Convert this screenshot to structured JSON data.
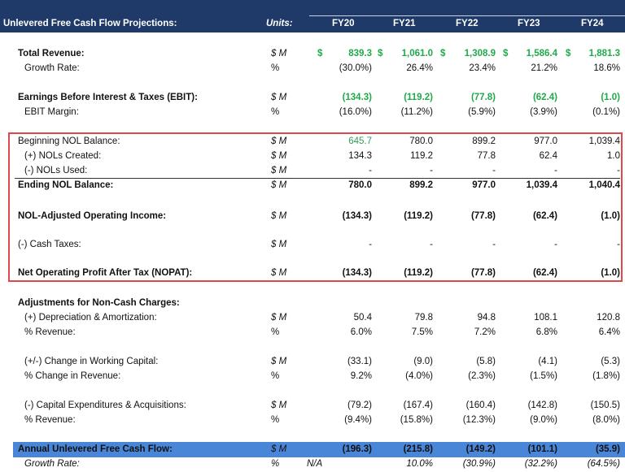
{
  "header": {
    "title": "Unlevered Free Cash Flow Projections:",
    "units_label": "Units:",
    "years": [
      "FY20",
      "FY21",
      "FY22",
      "FY23",
      "FY24"
    ]
  },
  "colors": {
    "header_bg": "#1f3a68",
    "positive_green": "#1faa4a",
    "highlight_box": "#e0474c",
    "total_bar": "#4a86d8"
  },
  "currency_symbol": "$",
  "rows": [
    {
      "label": "Total Revenue:",
      "units": "$ M",
      "values": [
        "839.3",
        "1,061.0",
        "1,308.9",
        "1,586.4",
        "1,881.3"
      ]
    },
    {
      "label": "Growth Rate:",
      "units": "%",
      "values": [
        "(30.0%)",
        "26.4%",
        "23.4%",
        "21.2%",
        "18.6%"
      ]
    },
    {
      "label": "Earnings Before Interest & Taxes (EBIT):",
      "units": "$ M",
      "values": [
        "(134.3)",
        "(119.2)",
        "(77.8)",
        "(62.4)",
        "(1.0)"
      ]
    },
    {
      "label": "EBIT Margin:",
      "units": "%",
      "values": [
        "(16.0%)",
        "(11.2%)",
        "(5.9%)",
        "(3.9%)",
        "(0.1%)"
      ]
    },
    {
      "label": "Beginning NOL Balance:",
      "units": "$ M",
      "values": [
        "645.7",
        "780.0",
        "899.2",
        "977.0",
        "1,039.4"
      ]
    },
    {
      "label": "(+) NOLs Created:",
      "units": "$ M",
      "values": [
        "134.3",
        "119.2",
        "77.8",
        "62.4",
        "1.0"
      ]
    },
    {
      "label": "(-) NOLs Used:",
      "units": "$ M",
      "values": [
        "-",
        "-",
        "-",
        "-",
        "-"
      ]
    },
    {
      "label": "Ending NOL Balance:",
      "units": "$ M",
      "values": [
        "780.0",
        "899.2",
        "977.0",
        "1,039.4",
        "1,040.4"
      ]
    },
    {
      "label": "NOL-Adjusted Operating Income:",
      "units": "$ M",
      "values": [
        "(134.3)",
        "(119.2)",
        "(77.8)",
        "(62.4)",
        "(1.0)"
      ]
    },
    {
      "label": "(-) Cash Taxes:",
      "units": "$ M",
      "values": [
        "-",
        "-",
        "-",
        "-",
        "-"
      ]
    },
    {
      "label": "Net Operating Profit After Tax (NOPAT):",
      "units": "$ M",
      "values": [
        "(134.3)",
        "(119.2)",
        "(77.8)",
        "(62.4)",
        "(1.0)"
      ]
    },
    {
      "label": "Adjustments for Non-Cash Charges:",
      "units": "",
      "values": []
    },
    {
      "label": "(+) Depreciation & Amortization:",
      "units": "$ M",
      "values": [
        "50.4",
        "79.8",
        "94.8",
        "108.1",
        "120.8"
      ]
    },
    {
      "label": "% Revenue:",
      "units": "%",
      "values": [
        "6.0%",
        "7.5%",
        "7.2%",
        "6.8%",
        "6.4%"
      ]
    },
    {
      "label": "(+/-) Change in Working Capital:",
      "units": "$ M",
      "values": [
        "(33.1)",
        "(9.0)",
        "(5.8)",
        "(4.1)",
        "(5.3)"
      ]
    },
    {
      "label": "% Change in Revenue:",
      "units": "%",
      "values": [
        "9.2%",
        "(4.0%)",
        "(2.3%)",
        "(1.5%)",
        "(1.8%)"
      ]
    },
    {
      "label": "(-) Capital Expenditures & Acquisitions:",
      "units": "$ M",
      "values": [
        "(79.2)",
        "(167.4)",
        "(160.4)",
        "(142.8)",
        "(150.5)"
      ]
    },
    {
      "label": "% Revenue:",
      "units": "%",
      "values": [
        "(9.4%)",
        "(15.8%)",
        "(12.3%)",
        "(9.0%)",
        "(8.0%)"
      ]
    },
    {
      "label": "Annual Unlevered Free Cash Flow:",
      "units": "$ M",
      "values": [
        "(196.3)",
        "(215.8)",
        "(149.2)",
        "(101.1)",
        "(35.9)"
      ]
    },
    {
      "label": "Growth Rate:",
      "units": "%",
      "prefix": "N/A",
      "values": [
        "",
        "10.0%",
        "(30.9%)",
        "(32.2%)",
        "(64.5%)"
      ]
    }
  ]
}
